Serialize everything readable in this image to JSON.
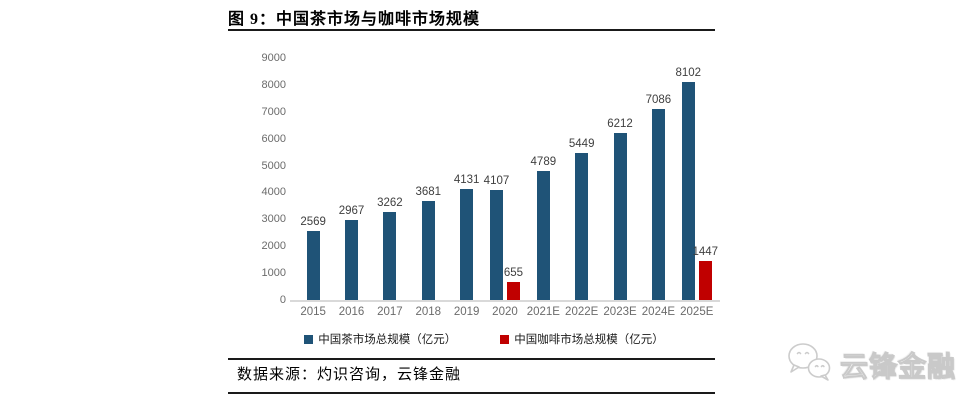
{
  "figure": {
    "title": "图 9：中国茶市场与咖啡市场规模",
    "source": "数据来源：灼识咨询，云锋金融"
  },
  "watermark": {
    "text": "云锋金融",
    "icon": "wechat-logo-icon"
  },
  "chart_data": {
    "type": "bar",
    "categories": [
      "2015",
      "2016",
      "2017",
      "2018",
      "2019",
      "2020",
      "2021E",
      "2022E",
      "2023E",
      "2024E",
      "2025E"
    ],
    "series": [
      {
        "name": "中国茶市场总规模（亿元）",
        "color": "#1F5377",
        "values": [
          2569,
          2967,
          3262,
          3681,
          4131,
          4107,
          4789,
          5449,
          6212,
          7086,
          8102
        ]
      },
      {
        "name": "中国咖啡市场总规模（亿元）",
        "color": "#C00000",
        "values": [
          null,
          null,
          null,
          null,
          null,
          655,
          null,
          null,
          null,
          null,
          1447
        ]
      }
    ],
    "title": "图 9：中国茶市场与咖啡市场规模",
    "xlabel": "",
    "ylabel": "",
    "ylim": [
      0,
      9000
    ],
    "ytick_interval": 1000,
    "grid": false,
    "legend_position": "bottom",
    "axis_text_color": "#6b6b6b",
    "value_label_color": "#3f3f3f"
  }
}
